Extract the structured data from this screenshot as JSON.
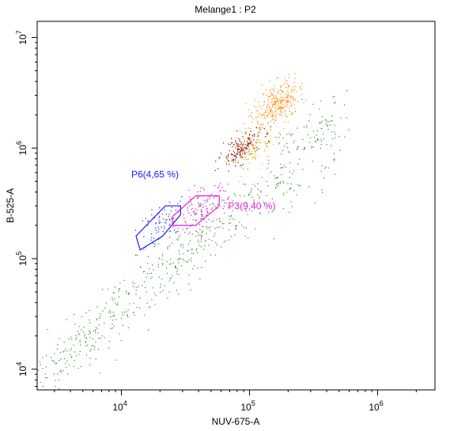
{
  "chart_data": {
    "type": "scatter",
    "title": "Melange1 : P2",
    "xlabel": "NUV-675-A",
    "ylabel": "B-525-A",
    "x_scale": "log",
    "y_scale": "log",
    "xlim": [
      2200,
      2800000
    ],
    "ylim": [
      6500,
      14000000
    ],
    "x_ticks": [
      {
        "base": "10",
        "exp": "4",
        "value": 10000
      },
      {
        "base": "10",
        "exp": "5",
        "value": 100000
      },
      {
        "base": "10",
        "exp": "6",
        "value": 1000000
      }
    ],
    "y_ticks": [
      {
        "base": "10",
        "exp": "4",
        "value": 10000
      },
      {
        "base": "10",
        "exp": "5",
        "value": 100000
      },
      {
        "base": "10",
        "exp": "6",
        "value": 1000000
      },
      {
        "base": "10",
        "exp": "7",
        "value": 10000000
      }
    ],
    "grid": false,
    "gates": [
      {
        "label": "P6(4,65 %)",
        "color": "#1a1aff",
        "vertices": [
          [
            14000,
            120000
          ],
          [
            21000,
            160000
          ],
          [
            29000,
            250000
          ],
          [
            29000,
            300000
          ],
          [
            22000,
            300000
          ],
          [
            13000,
            160000
          ]
        ]
      },
      {
        "label": "P3(9,40 %)",
        "color": "#e020e0",
        "vertices": [
          [
            25000,
            200000
          ],
          [
            38000,
            200000
          ],
          [
            58000,
            300000
          ],
          [
            58000,
            370000
          ],
          [
            38000,
            370000
          ],
          [
            25000,
            240000
          ]
        ]
      }
    ],
    "clusters": [
      {
        "name": "",
        "color": "#2e8b2e",
        "center": [
          120000,
          500000
        ],
        "count": 650,
        "spread": [
          1.0,
          1.0
        ],
        "shape": "diagonal"
      },
      {
        "name": "",
        "color": "#ff8c00",
        "center": [
          160000,
          2500000
        ],
        "count": 320,
        "spread": [
          0.09,
          0.09
        ],
        "shape": "blob"
      },
      {
        "name": "",
        "color": "#8b0000",
        "center": [
          85000,
          1000000
        ],
        "count": 170,
        "spread": [
          0.08,
          0.06
        ],
        "shape": "blob"
      },
      {
        "name": "",
        "color": "#e6b800",
        "center": [
          105000,
          950000
        ],
        "count": 110,
        "spread": [
          0.09,
          0.07
        ],
        "shape": "blob"
      },
      {
        "name": "",
        "color": "#cc00cc",
        "center": [
          42000,
          280000
        ],
        "count": 110,
        "spread": [
          0.1,
          0.09
        ],
        "shape": "blob"
      },
      {
        "name": "",
        "color": "#1a1aff",
        "center": [
          21000,
          210000
        ],
        "count": 80,
        "spread": [
          0.09,
          0.09
        ],
        "shape": "blob"
      }
    ]
  }
}
